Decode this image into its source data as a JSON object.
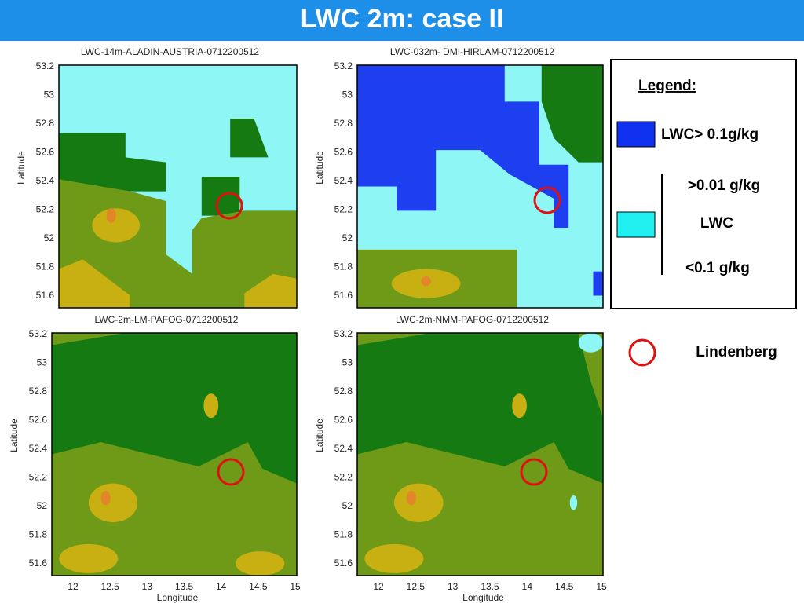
{
  "header": {
    "title": "LWC 2m: case II"
  },
  "panels": [
    {
      "title": "LWC-14m-ALADIN-AUSTRIA-0712200512",
      "y_label": "Latitude",
      "y_ticks": [
        "53.2",
        "53",
        "52.8",
        "52.6",
        "52.4",
        "52.2",
        "52",
        "51.8",
        "51.6"
      ]
    },
    {
      "title": "LWC-032m- DMI-HIRLAM-0712200512",
      "y_label": "Latitude",
      "y_ticks": [
        "53.2",
        "53",
        "52.8",
        "52.6",
        "52.4",
        "52.2",
        "52",
        "51.8",
        "51.6"
      ]
    },
    {
      "title": "LWC-2m-LM-PAFOG-0712200512",
      "y_label": "Latitude",
      "y_ticks": [
        "53.2",
        "53",
        "52.8",
        "52.6",
        "52.4",
        "52.2",
        "52",
        "51.8",
        "51.6"
      ],
      "x_label": "Longitude",
      "x_ticks": [
        "12",
        "12.5",
        "13",
        "13.5",
        "14",
        "14.5",
        "15"
      ]
    },
    {
      "title": "LWC-2m-NMM-PAFOG-0712200512",
      "y_label": "Latitude",
      "y_ticks": [
        "53.2",
        "53",
        "52.8",
        "52.6",
        "52.4",
        "52.2",
        "52",
        "51.8",
        "51.6"
      ],
      "x_label": "Longitude",
      "x_ticks": [
        "12",
        "12.5",
        "13",
        "13.5",
        "14",
        "14.5",
        "15"
      ]
    }
  ],
  "legend": {
    "title": "Legend:",
    "high": "LWC> 0.1g/kg",
    "range_top": ">0.01 g/kg",
    "range_mid": "LWC",
    "range_bottom": "<0.1 g/kg",
    "site": "Lindenberg"
  }
}
